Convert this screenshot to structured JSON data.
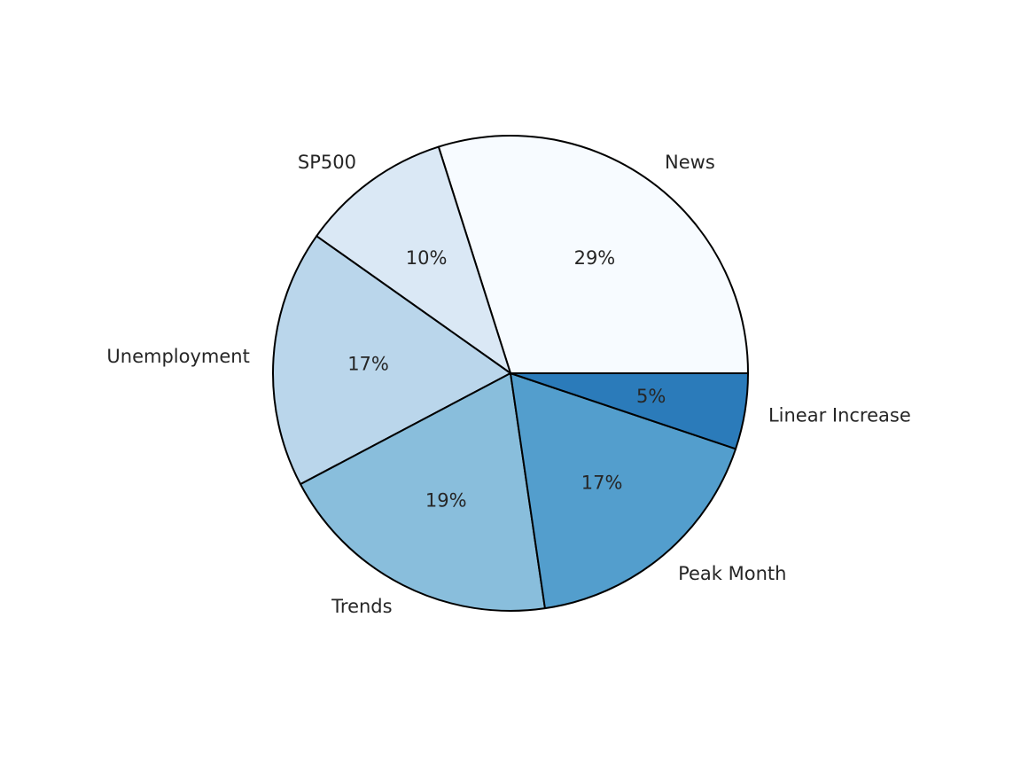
{
  "chart_data": {
    "type": "pie",
    "categories": [
      "News",
      "SP500",
      "Unemployment",
      "Trends",
      "Peak Month",
      "Linear Increase"
    ],
    "values": [
      29,
      10,
      17,
      19,
      17,
      5
    ],
    "percent_labels": [
      "29%",
      "10%",
      "17%",
      "19%",
      "17%",
      "5%"
    ],
    "start_angle_deg": 0,
    "direction": "counterclockwise",
    "colors": [
      "#f7fbff",
      "#dae8f5",
      "#bad6eb",
      "#89bedc",
      "#539ecd",
      "#2b7bba"
    ],
    "edge_color": "#000000",
    "text_color": "#262626"
  }
}
